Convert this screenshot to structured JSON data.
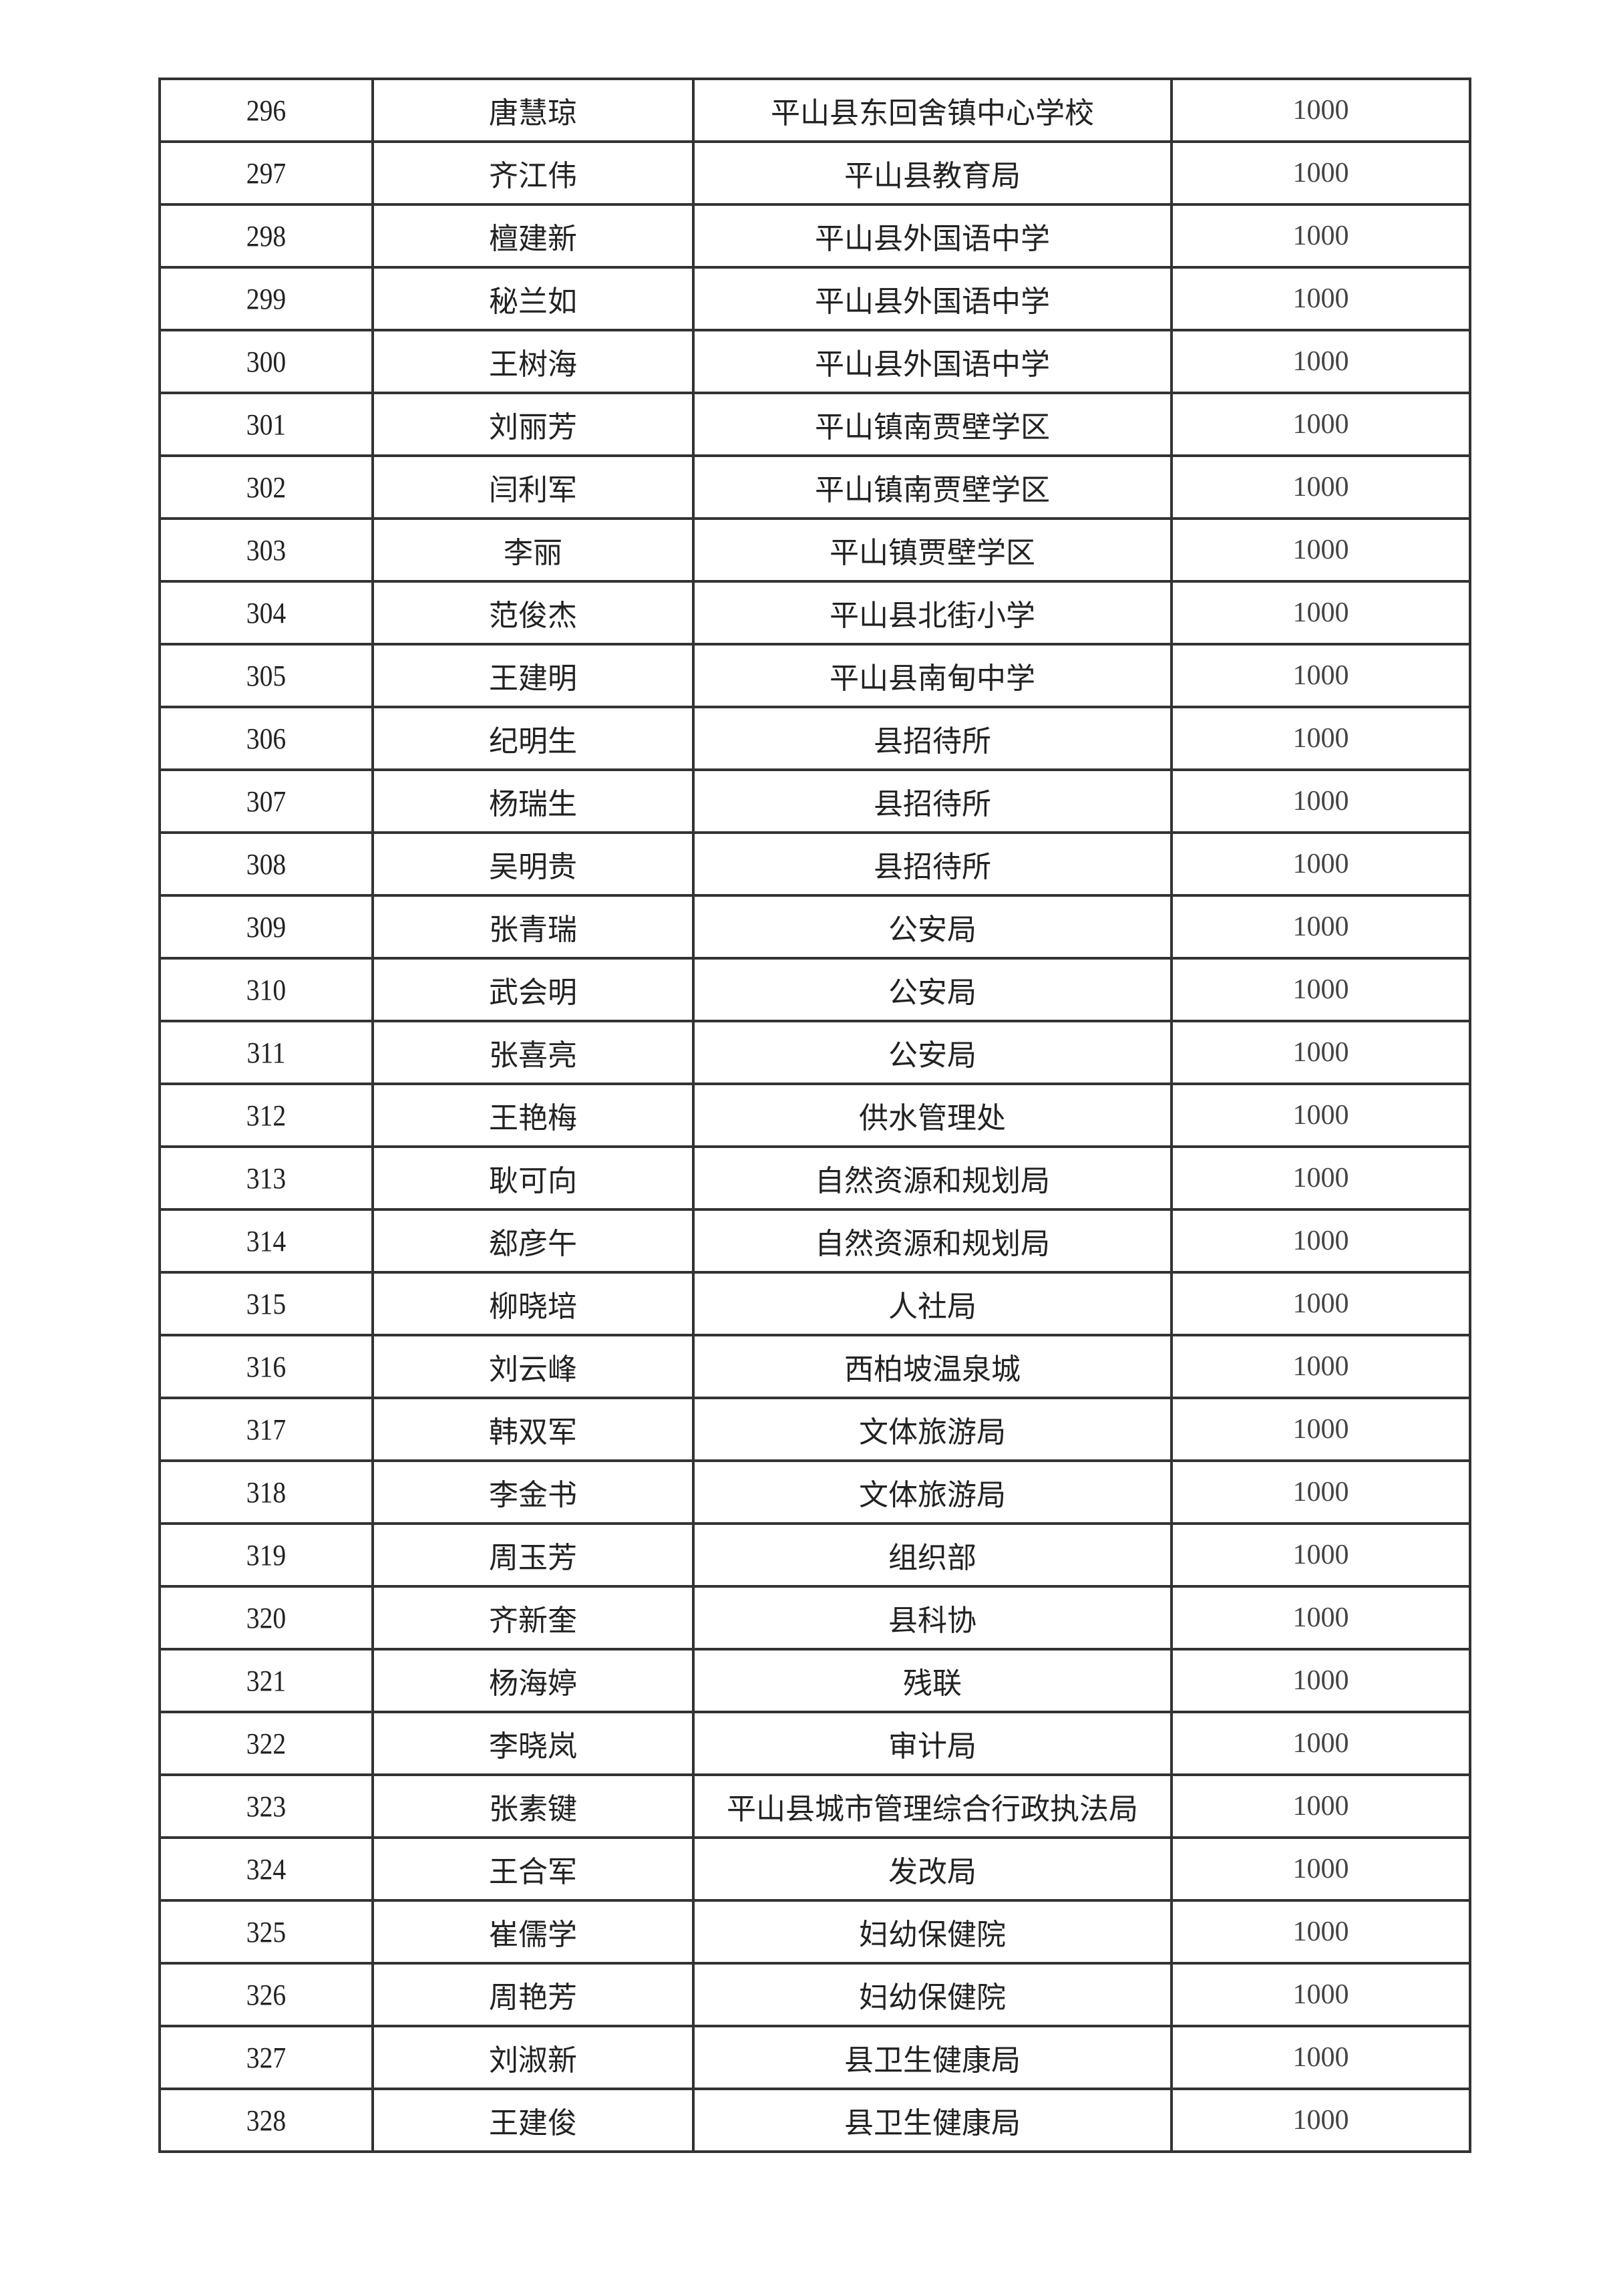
{
  "rows": [
    {
      "no": "296",
      "name": "唐慧琼",
      "unit": "平山县东回舍镇中心学校",
      "amount": "1000"
    },
    {
      "no": "297",
      "name": "齐江伟",
      "unit": "平山县教育局",
      "amount": "1000"
    },
    {
      "no": "298",
      "name": "檀建新",
      "unit": "平山县外国语中学",
      "amount": "1000"
    },
    {
      "no": "299",
      "name": "秘兰如",
      "unit": "平山县外国语中学",
      "amount": "1000"
    },
    {
      "no": "300",
      "name": "王树海",
      "unit": "平山县外国语中学",
      "amount": "1000"
    },
    {
      "no": "301",
      "name": "刘丽芳",
      "unit": "平山镇南贾壁学区",
      "amount": "1000"
    },
    {
      "no": "302",
      "name": "闫利军",
      "unit": "平山镇南贾壁学区",
      "amount": "1000"
    },
    {
      "no": "303",
      "name": "李丽",
      "unit": "平山镇贾壁学区",
      "amount": "1000"
    },
    {
      "no": "304",
      "name": "范俊杰",
      "unit": "平山县北街小学",
      "amount": "1000"
    },
    {
      "no": "305",
      "name": "王建明",
      "unit": "平山县南甸中学",
      "amount": "1000"
    },
    {
      "no": "306",
      "name": "纪明生",
      "unit": "县招待所",
      "amount": "1000"
    },
    {
      "no": "307",
      "name": "杨瑞生",
      "unit": "县招待所",
      "amount": "1000"
    },
    {
      "no": "308",
      "name": "吴明贵",
      "unit": "县招待所",
      "amount": "1000"
    },
    {
      "no": "309",
      "name": "张青瑞",
      "unit": "公安局",
      "amount": "1000"
    },
    {
      "no": "310",
      "name": "武会明",
      "unit": "公安局",
      "amount": "1000"
    },
    {
      "no": "311",
      "name": "张喜亮",
      "unit": "公安局",
      "amount": "1000"
    },
    {
      "no": "312",
      "name": "王艳梅",
      "unit": "供水管理处",
      "amount": "1000"
    },
    {
      "no": "313",
      "name": "耿可向",
      "unit": "自然资源和规划局",
      "amount": "1000"
    },
    {
      "no": "314",
      "name": "郄彦午",
      "unit": "自然资源和规划局",
      "amount": "1000"
    },
    {
      "no": "315",
      "name": "柳晓培",
      "unit": "人社局",
      "amount": "1000"
    },
    {
      "no": "316",
      "name": "刘云峰",
      "unit": "西柏坡温泉城",
      "amount": "1000"
    },
    {
      "no": "317",
      "name": "韩双军",
      "unit": "文体旅游局",
      "amount": "1000"
    },
    {
      "no": "318",
      "name": "李金书",
      "unit": "文体旅游局",
      "amount": "1000"
    },
    {
      "no": "319",
      "name": "周玉芳",
      "unit": "组织部",
      "amount": "1000"
    },
    {
      "no": "320",
      "name": "齐新奎",
      "unit": "县科协",
      "amount": "1000"
    },
    {
      "no": "321",
      "name": "杨海婷",
      "unit": "残联",
      "amount": "1000"
    },
    {
      "no": "322",
      "name": "李晓岚",
      "unit": "审计局",
      "amount": "1000"
    },
    {
      "no": "323",
      "name": "张素键",
      "unit": "平山县城市管理综合行政执法局",
      "amount": "1000"
    },
    {
      "no": "324",
      "name": "王合军",
      "unit": "发改局",
      "amount": "1000"
    },
    {
      "no": "325",
      "name": "崔儒学",
      "unit": "妇幼保健院",
      "amount": "1000"
    },
    {
      "no": "326",
      "name": "周艳芳",
      "unit": "妇幼保健院",
      "amount": "1000"
    },
    {
      "no": "327",
      "name": "刘淑新",
      "unit": "县卫生健康局",
      "amount": "1000"
    },
    {
      "no": "328",
      "name": "王建俊",
      "unit": "县卫生健康局",
      "amount": "1000"
    }
  ]
}
